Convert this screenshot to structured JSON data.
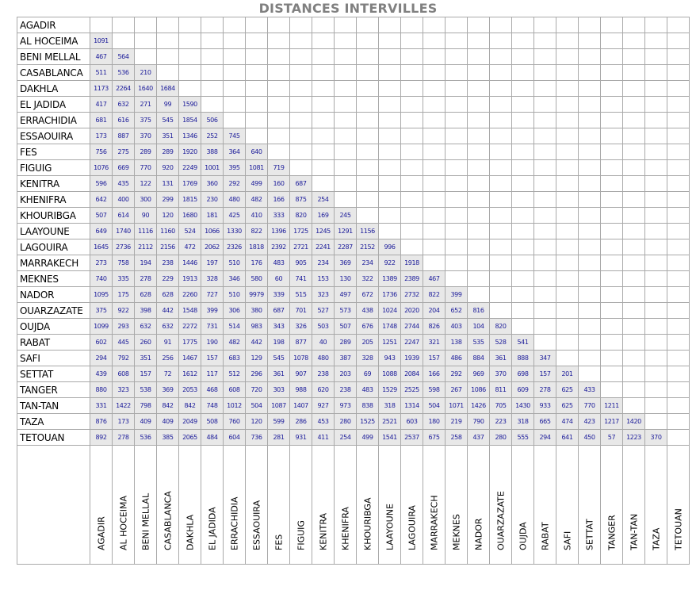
{
  "title": "DISTANCES INTERVILLES",
  "cities": [
    "AGADIR",
    "AL HOCEIMA",
    "BENI MELLAL",
    "CASABLANCA",
    "DAKHLA",
    "EL JADIDA",
    "ERRACHIDIA",
    "ESSAOUIRA",
    "FES",
    "FIGUIG",
    "KENITRA",
    "KHENIFRA",
    "KHOURIBGA",
    "LAAYOUNE",
    "LAGOUIRA",
    "MARRAKECH",
    "MEKNES",
    "NADOR",
    "OUARZAZATE",
    "OUJDA",
    "RABAT",
    "SAFI",
    "SETTAT",
    "TANGER",
    "TAN-TAN",
    "TAZA",
    "TETOUAN"
  ],
  "distances": [
    [],
    [
      "1091"
    ],
    [
      "467",
      "564"
    ],
    [
      "511",
      "536",
      "210"
    ],
    [
      "1173",
      "2264",
      "1640",
      "1684"
    ],
    [
      "417",
      "632",
      "271",
      "99",
      "1590"
    ],
    [
      "681",
      "616",
      "375",
      "545",
      "1854",
      "506"
    ],
    [
      "173",
      "887",
      "370",
      "351",
      "1346",
      "252",
      "745"
    ],
    [
      "756",
      "275",
      "289",
      "289",
      "1920",
      "388",
      "364",
      "640"
    ],
    [
      "1076",
      "669",
      "770",
      "920",
      "2249",
      "1001",
      "395",
      "1081",
      "719"
    ],
    [
      "596",
      "435",
      "122",
      "131",
      "1769",
      "360",
      "292",
      "499",
      "160",
      "687"
    ],
    [
      "642",
      "400",
      "300",
      "299",
      "1815",
      "230",
      "480",
      "482",
      "166",
      "875",
      "254"
    ],
    [
      "507",
      "614",
      "90",
      "120",
      "1680",
      "181",
      "425",
      "410",
      "333",
      "820",
      "169",
      "245"
    ],
    [
      "649",
      "1740",
      "1116",
      "1160",
      "524",
      "1066",
      "1330",
      "822",
      "1396",
      "1725",
      "1245",
      "1291",
      "1156"
    ],
    [
      "1645",
      "2736",
      "2112",
      "2156",
      "472",
      "2062",
      "2326",
      "1818",
      "2392",
      "2721",
      "2241",
      "2287",
      "2152",
      "996"
    ],
    [
      "273",
      "758",
      "194",
      "238",
      "1446",
      "197",
      "510",
      "176",
      "483",
      "905",
      "234",
      "369",
      "234",
      "922",
      "1918"
    ],
    [
      "740",
      "335",
      "278",
      "229",
      "1913",
      "328",
      "346",
      "580",
      "60",
      "741",
      "153",
      "130",
      "322",
      "1389",
      "2389",
      "467"
    ],
    [
      "1095",
      "175",
      "628",
      "628",
      "2260",
      "727",
      "510",
      "9979",
      "339",
      "515",
      "323",
      "497",
      "672",
      "1736",
      "2732",
      "822",
      "399"
    ],
    [
      "375",
      "922",
      "398",
      "442",
      "1548",
      "399",
      "306",
      "380",
      "687",
      "701",
      "527",
      "573",
      "438",
      "1024",
      "2020",
      "204",
      "652",
      "816"
    ],
    [
      "1099",
      "293",
      "632",
      "632",
      "2272",
      "731",
      "514",
      "983",
      "343",
      "326",
      "503",
      "507",
      "676",
      "1748",
      "2744",
      "826",
      "403",
      "104",
      "820"
    ],
    [
      "602",
      "445",
      "260",
      "91",
      "1775",
      "190",
      "482",
      "442",
      "198",
      "877",
      "40",
      "289",
      "205",
      "1251",
      "2247",
      "321",
      "138",
      "535",
      "528",
      "541"
    ],
    [
      "294",
      "792",
      "351",
      "256",
      "1467",
      "157",
      "683",
      "129",
      "545",
      "1078",
      "480",
      "387",
      "328",
      "943",
      "1939",
      "157",
      "486",
      "884",
      "361",
      "888",
      "347"
    ],
    [
      "439",
      "608",
      "157",
      "72",
      "1612",
      "117",
      "512",
      "296",
      "361",
      "907",
      "238",
      "203",
      "69",
      "1088",
      "2084",
      "166",
      "292",
      "969",
      "370",
      "698",
      "157",
      "201"
    ],
    [
      "880",
      "323",
      "538",
      "369",
      "2053",
      "468",
      "608",
      "720",
      "303",
      "988",
      "620",
      "238",
      "483",
      "1529",
      "2525",
      "598",
      "267",
      "1086",
      "811",
      "609",
      "278",
      "625",
      "433"
    ],
    [
      "331",
      "1422",
      "798",
      "842",
      "842",
      "748",
      "1012",
      "504",
      "1087",
      "1407",
      "927",
      "973",
      "838",
      "318",
      "1314",
      "504",
      "1071",
      "1426",
      "705",
      "1430",
      "933",
      "625",
      "770",
      "1211"
    ],
    [
      "876",
      "173",
      "409",
      "409",
      "2049",
      "508",
      "760",
      "120",
      "599",
      "286",
      "453",
      "280",
      "1525",
      "2521",
      "603",
      "180",
      "219",
      "790",
      "223",
      "318",
      "665",
      "474",
      "423",
      "1217",
      "1420"
    ],
    [
      "892",
      "278",
      "536",
      "385",
      "2065",
      "484",
      "604",
      "736",
      "281",
      "931",
      "411",
      "254",
      "499",
      "1541",
      "2537",
      "675",
      "258",
      "437",
      "280",
      "555",
      "294",
      "641",
      "450",
      "57",
      "1223",
      "370"
    ]
  ]
}
